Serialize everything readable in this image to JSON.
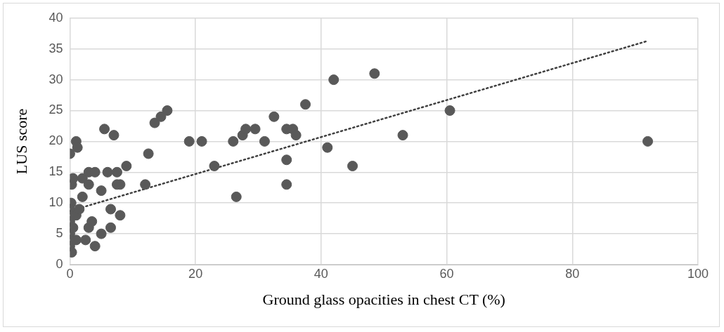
{
  "chart_data": {
    "type": "scatter",
    "xlabel": "Ground glass opacities in chest CT (%)",
    "ylabel": "LUS score",
    "xlim": [
      0,
      100
    ],
    "xticks": [
      0,
      20,
      40,
      60,
      80,
      100
    ],
    "ylim": [
      0,
      40
    ],
    "yticks": [
      0,
      5,
      10,
      15,
      20,
      25,
      30,
      35,
      40
    ],
    "grid": true,
    "legend": false,
    "marker": "circle",
    "series": [
      {
        "color": "#595959",
        "x": [
          0,
          0.3,
          0.5,
          1,
          1.2,
          0.2,
          0,
          0,
          0,
          0,
          0,
          0,
          0,
          0.3,
          0.5,
          1,
          1.5,
          1,
          2,
          2,
          3,
          3,
          4,
          2.5,
          3,
          3.5,
          4,
          5,
          5,
          5.5,
          6,
          6.5,
          6.5,
          7,
          7.5,
          8,
          8,
          7.5,
          9,
          12,
          12.5,
          13.5,
          14.5,
          15.5,
          19,
          21,
          23,
          26,
          26.5,
          27.5,
          28,
          29.5,
          31,
          32.5,
          34.5,
          34.5,
          34.5,
          35.5,
          36,
          37.5,
          41,
          42,
          45,
          48.5,
          53,
          60.5,
          92
        ],
        "values": [
          18,
          13,
          14,
          20,
          19,
          10,
          9,
          8,
          7,
          6,
          5,
          4,
          3,
          2,
          6,
          8,
          9,
          4,
          11,
          14,
          13,
          15,
          15,
          4,
          6,
          7,
          3,
          5,
          12,
          22,
          15,
          9,
          6,
          21,
          15,
          8,
          13,
          13,
          16,
          13,
          18,
          23,
          24,
          25,
          20,
          20,
          16,
          20,
          11,
          21,
          22,
          22,
          20,
          24,
          17,
          13,
          22,
          22,
          21,
          26,
          19,
          30,
          16,
          31,
          21,
          25,
          20
        ]
      },
      {
        "type": "line",
        "color": "#404040",
        "line_style": "dotted",
        "marker": "none",
        "x": [
          0,
          92
        ],
        "values": [
          8.7,
          36.3
        ]
      }
    ]
  }
}
